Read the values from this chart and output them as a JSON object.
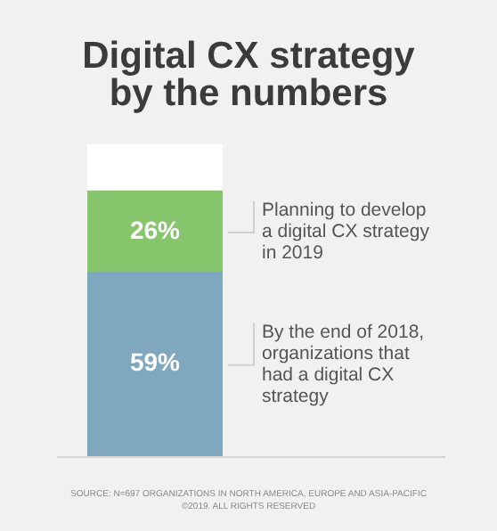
{
  "chart_data": {
    "type": "bar",
    "title": "Digital CX strategy by the numbers",
    "categories": [
      null
    ],
    "stacked": true,
    "ylim": [
      0,
      100
    ],
    "tick_labels": false,
    "legend": false,
    "series": [
      {
        "name": "By the end of 2018, organizations that had a digital CX strategy",
        "color": "#7fa7bd",
        "values": [
          59
        ],
        "value_labels": [
          "59%"
        ]
      },
      {
        "name": "Planning to develop a digital CX strategy in 2019",
        "color": "#86c56b",
        "values": [
          26
        ],
        "value_labels": [
          "26%"
        ]
      },
      {
        "color": "#ffffff",
        "values": [
          15
        ]
      }
    ],
    "annotations": [
      "SOURCE: N=697 ORGANIZATIONS IN NORTH AMERICA, EUROPE AND ASIA-PACIFIC",
      "©2019. ALL RIGHTS RESERVED"
    ]
  }
}
